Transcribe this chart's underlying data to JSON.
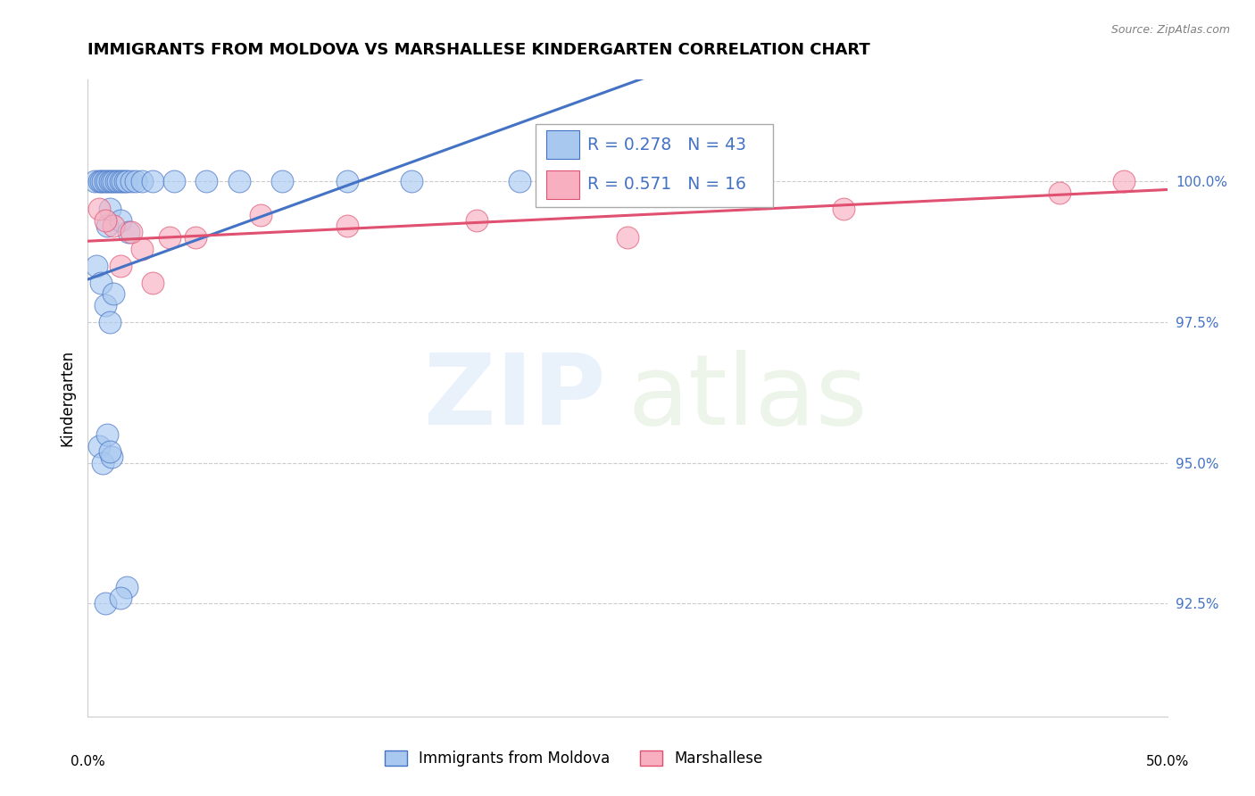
{
  "title": "IMMIGRANTS FROM MOLDOVA VS MARSHALLESE KINDERGARTEN CORRELATION CHART",
  "source": "Source: ZipAtlas.com",
  "ylabel": "Kindergarten",
  "ytick_vals": [
    92.5,
    95.0,
    97.5,
    100.0
  ],
  "ytick_labels": [
    "92.5%",
    "95.0%",
    "97.5%",
    "100.0%"
  ],
  "xlim": [
    0.0,
    50.0
  ],
  "ylim": [
    90.5,
    101.8
  ],
  "legend1_label": "Immigrants from Moldova",
  "legend2_label": "Marshallese",
  "r1": 0.278,
  "n1": 43,
  "r2": 0.571,
  "n2": 16,
  "color1": "#A8C8F0",
  "color2": "#F8B0C0",
  "line_color1": "#4472C4",
  "line_color2": "#E05070",
  "blue_x": [
    0.3,
    0.5,
    0.6,
    0.7,
    0.8,
    0.9,
    0.9,
    1.0,
    1.0,
    1.1,
    1.2,
    1.3,
    1.4,
    1.5,
    1.5,
    1.6,
    1.7,
    1.8,
    1.9,
    2.0,
    2.2,
    2.5,
    3.0,
    4.0,
    5.5,
    7.0,
    9.0,
    12.0,
    15.0,
    20.0,
    0.4,
    0.6,
    0.8,
    1.0,
    1.2,
    0.5,
    0.7,
    0.9,
    1.1,
    1.0,
    1.8,
    0.8,
    1.5
  ],
  "blue_y": [
    100.0,
    100.0,
    100.0,
    100.0,
    100.0,
    100.0,
    99.2,
    100.0,
    99.5,
    100.0,
    100.0,
    100.0,
    100.0,
    100.0,
    99.3,
    100.0,
    100.0,
    100.0,
    99.1,
    100.0,
    100.0,
    100.0,
    100.0,
    100.0,
    100.0,
    100.0,
    100.0,
    100.0,
    100.0,
    100.0,
    98.5,
    98.2,
    97.8,
    97.5,
    98.0,
    95.3,
    95.0,
    95.5,
    95.1,
    95.2,
    92.8,
    92.5,
    92.6
  ],
  "pink_x": [
    0.5,
    1.2,
    2.5,
    3.8,
    0.8,
    1.5,
    2.0,
    5.0,
    8.0,
    12.0,
    18.0,
    25.0,
    35.0,
    45.0,
    48.0,
    3.0
  ],
  "pink_y": [
    99.5,
    99.2,
    98.8,
    99.0,
    99.3,
    98.5,
    99.1,
    99.0,
    99.4,
    99.2,
    99.3,
    99.0,
    99.5,
    99.8,
    100.0,
    98.2
  ]
}
